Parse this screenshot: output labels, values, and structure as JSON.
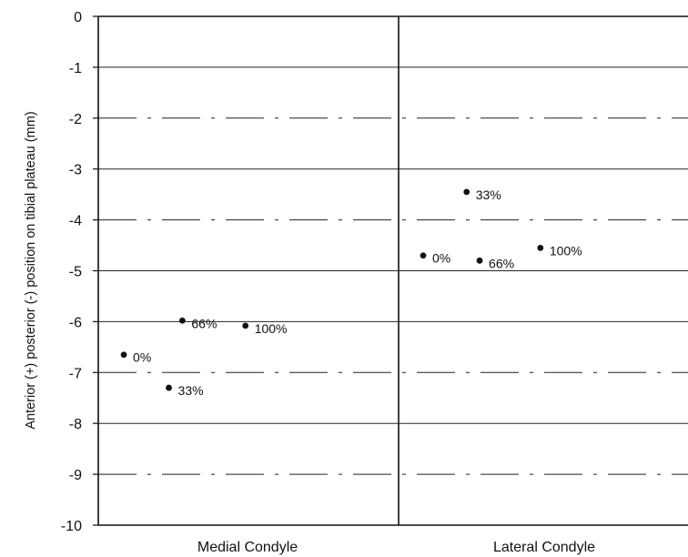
{
  "chart_data": {
    "type": "scatter",
    "title": "",
    "ylabel": "Anterior (+) posterior (-) position on tibial plateau (mm)",
    "xlabel": "",
    "ylim": [
      -10,
      0
    ],
    "yticks": [
      0,
      -1,
      -2,
      -3,
      -4,
      -5,
      -6,
      -7,
      -8,
      -9,
      -10
    ],
    "ytick_labels": [
      "0",
      "-1",
      "-2",
      "-3",
      "-4",
      "-5",
      "-6",
      "-7",
      "-8",
      "-9",
      "-10"
    ],
    "categories": [
      "Medial Condyle",
      "Lateral Condyle"
    ],
    "grid": "horizontal",
    "series": [
      {
        "category": "Medial Condyle",
        "points": [
          {
            "label": "0%",
            "y": -6.65
          },
          {
            "label": "33%",
            "y": -7.3
          },
          {
            "label": "66%",
            "y": -5.98
          },
          {
            "label": "100%",
            "y": -6.08
          }
        ]
      },
      {
        "category": "Lateral Condyle",
        "points": [
          {
            "label": "0%",
            "y": -4.7
          },
          {
            "label": "33%",
            "y": -3.45
          },
          {
            "label": "66%",
            "y": -4.8
          },
          {
            "label": "100%",
            "y": -4.55
          }
        ]
      }
    ]
  }
}
